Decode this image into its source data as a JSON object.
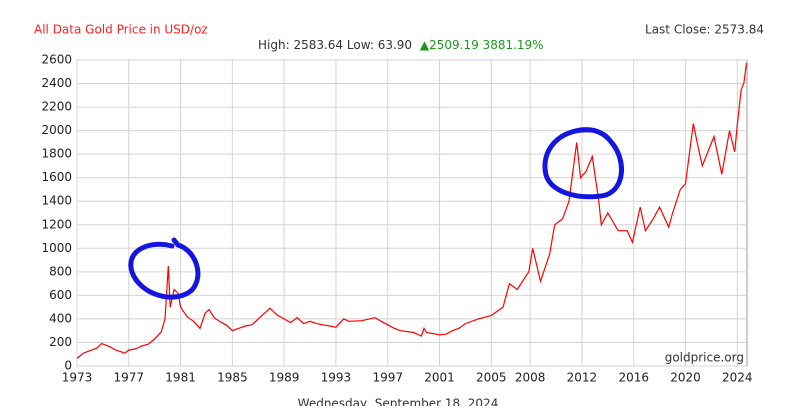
{
  "chart_data": {
    "type": "line",
    "title": "All Data Gold Price in USD/oz",
    "last_close": "Last Close: 2573.84",
    "high_low": "High: 2583.64 Low: 63.90",
    "change": "▲2509.19 3881.19%",
    "watermark": "goldprice.org",
    "date": "Wednesday, September 18, 2024",
    "color": "#ff0000",
    "grid": true,
    "xlim": [
      1973,
      2024.75
    ],
    "xticks": [
      1973,
      1977,
      1981,
      1985,
      1989,
      1993,
      1997,
      2001,
      2005,
      2008,
      2012,
      2016,
      2020,
      2024
    ],
    "ylim": [
      0,
      2600
    ],
    "yticks": [
      0,
      200,
      400,
      600,
      800,
      1000,
      1200,
      1400,
      1600,
      1800,
      2000,
      2200,
      2400,
      2600
    ],
    "x": [
      1973.0,
      1973.5,
      1974.0,
      1974.5,
      1974.9,
      1975.5,
      1976.0,
      1976.7,
      1977.0,
      1977.5,
      1978.0,
      1978.5,
      1979.0,
      1979.5,
      1979.8,
      1980.05,
      1980.2,
      1980.5,
      1980.8,
      1981.0,
      1981.5,
      1982.0,
      1982.5,
      1982.9,
      1983.2,
      1983.6,
      1984.0,
      1984.5,
      1985.0,
      1985.5,
      1986.0,
      1986.5,
      1987.0,
      1987.9,
      1988.5,
      1989.0,
      1989.5,
      1990.0,
      1990.5,
      1991.0,
      1991.5,
      1992.0,
      1992.5,
      1993.0,
      1993.6,
      1994.0,
      1995.0,
      1996.0,
      1996.5,
      1997.0,
      1997.5,
      1998.0,
      1999.0,
      1999.6,
      1999.8,
      2000.0,
      2001.0,
      2001.5,
      2002.0,
      2002.5,
      2003.0,
      2004.0,
      2005.0,
      2005.9,
      2006.4,
      2007.0,
      2007.9,
      2008.2,
      2008.8,
      2009.5,
      2009.9,
      2010.5,
      2011.0,
      2011.6,
      2011.9,
      2012.3,
      2012.8,
      2013.3,
      2013.5,
      2014.0,
      2014.8,
      2015.5,
      2015.9,
      2016.5,
      2016.9,
      2017.5,
      2018.0,
      2018.7,
      2019.0,
      2019.6,
      2020.0,
      2020.6,
      2021.0,
      2021.3,
      2022.2,
      2022.8,
      2023.4,
      2023.8,
      2024.0,
      2024.3,
      2024.5,
      2024.71
    ],
    "values": [
      65,
      110,
      130,
      150,
      190,
      165,
      135,
      110,
      135,
      145,
      170,
      185,
      230,
      290,
      400,
      850,
      500,
      650,
      620,
      500,
      420,
      380,
      320,
      450,
      480,
      410,
      380,
      350,
      300,
      320,
      340,
      350,
      400,
      490,
      430,
      400,
      370,
      410,
      360,
      380,
      360,
      350,
      340,
      330,
      400,
      380,
      385,
      410,
      380,
      350,
      320,
      300,
      285,
      255,
      320,
      285,
      265,
      270,
      300,
      320,
      360,
      400,
      430,
      500,
      700,
      650,
      800,
      1000,
      720,
      950,
      1200,
      1250,
      1400,
      1900,
      1600,
      1650,
      1780,
      1400,
      1200,
      1300,
      1150,
      1150,
      1050,
      1350,
      1150,
      1250,
      1350,
      1180,
      1300,
      1500,
      1550,
      2060,
      1850,
      1700,
      1950,
      1630,
      2000,
      1820,
      2050,
      2350,
      2400,
      2573.84
    ]
  }
}
